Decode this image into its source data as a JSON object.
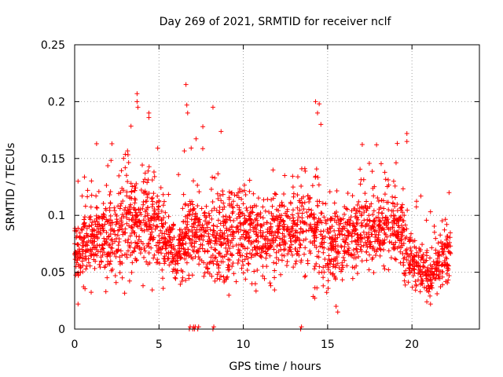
{
  "chart_data": {
    "type": "scatter",
    "title": "Day 269 of 2021, SRMTID for receiver nclf",
    "xlabel": "GPS time / hours",
    "ylabel": "SRMTID / TECUs",
    "xlim": [
      0,
      24
    ],
    "ylim": [
      0,
      0.25
    ],
    "x_ticks": [
      0,
      5,
      10,
      15,
      20
    ],
    "x_tick_labels": [
      "0",
      "5",
      "10",
      "15",
      "20"
    ],
    "y_ticks": [
      0,
      0.05,
      0.1,
      0.15,
      0.2,
      0.25
    ],
    "y_tick_labels": [
      "0",
      "0.05",
      "0.1",
      "0.15",
      "0.2",
      "0.25"
    ],
    "grid": true,
    "marker": "+",
    "series": [
      {
        "name": "SRMTID",
        "color": "#ff0000",
        "points_description": "Dense scatter of SRMTID values, mostly 0.03-0.13 TECU between 0 and 22.3 h; notable outliers listed below",
        "density_envelope": [
          {
            "x": 0.0,
            "center": 0.065,
            "spread": 0.025
          },
          {
            "x": 1.0,
            "center": 0.075,
            "spread": 0.03
          },
          {
            "x": 2.0,
            "center": 0.08,
            "spread": 0.035
          },
          {
            "x": 3.0,
            "center": 0.09,
            "spread": 0.04
          },
          {
            "x": 4.0,
            "center": 0.1,
            "spread": 0.045
          },
          {
            "x": 5.0,
            "center": 0.085,
            "spread": 0.03
          },
          {
            "x": 6.0,
            "center": 0.065,
            "spread": 0.025
          },
          {
            "x": 7.0,
            "center": 0.085,
            "spread": 0.035
          },
          {
            "x": 8.0,
            "center": 0.075,
            "spread": 0.03
          },
          {
            "x": 9.0,
            "center": 0.08,
            "spread": 0.035
          },
          {
            "x": 10.0,
            "center": 0.085,
            "spread": 0.035
          },
          {
            "x": 11.0,
            "center": 0.08,
            "spread": 0.03
          },
          {
            "x": 12.0,
            "center": 0.08,
            "spread": 0.03
          },
          {
            "x": 13.0,
            "center": 0.085,
            "spread": 0.03
          },
          {
            "x": 14.0,
            "center": 0.09,
            "spread": 0.04
          },
          {
            "x": 15.0,
            "center": 0.07,
            "spread": 0.03
          },
          {
            "x": 16.0,
            "center": 0.075,
            "spread": 0.03
          },
          {
            "x": 17.0,
            "center": 0.085,
            "spread": 0.03
          },
          {
            "x": 18.0,
            "center": 0.085,
            "spread": 0.03
          },
          {
            "x": 19.0,
            "center": 0.09,
            "spread": 0.035
          },
          {
            "x": 20.0,
            "center": 0.06,
            "spread": 0.02
          },
          {
            "x": 21.0,
            "center": 0.045,
            "spread": 0.015
          },
          {
            "x": 22.0,
            "center": 0.065,
            "spread": 0.025
          }
        ],
        "highlights": [
          {
            "x": 0.2,
            "y": 0.13
          },
          {
            "x": 0.2,
            "y": 0.022
          },
          {
            "x": 3.7,
            "y": 0.207
          },
          {
            "x": 3.7,
            "y": 0.2
          },
          {
            "x": 3.75,
            "y": 0.195
          },
          {
            "x": 4.4,
            "y": 0.19
          },
          {
            "x": 4.4,
            "y": 0.186
          },
          {
            "x": 6.6,
            "y": 0.215
          },
          {
            "x": 6.65,
            "y": 0.197
          },
          {
            "x": 6.7,
            "y": 0.19
          },
          {
            "x": 8.2,
            "y": 0.195
          },
          {
            "x": 7.6,
            "y": 0.178
          },
          {
            "x": 14.5,
            "y": 0.198
          },
          {
            "x": 14.4,
            "y": 0.19
          },
          {
            "x": 14.6,
            "y": 0.18
          },
          {
            "x": 19.7,
            "y": 0.172
          },
          {
            "x": 19.7,
            "y": 0.165
          },
          {
            "x": 17.9,
            "y": 0.162
          },
          {
            "x": 1.3,
            "y": 0.163
          },
          {
            "x": 15.6,
            "y": 0.015
          },
          {
            "x": 15.5,
            "y": 0.02
          },
          {
            "x": 22.2,
            "y": 0.12
          },
          {
            "x": 21.1,
            "y": 0.022
          }
        ],
        "zero_points": [
          6.8,
          7.0,
          7.1,
          7.3,
          8.2,
          13.4
        ]
      }
    ]
  }
}
